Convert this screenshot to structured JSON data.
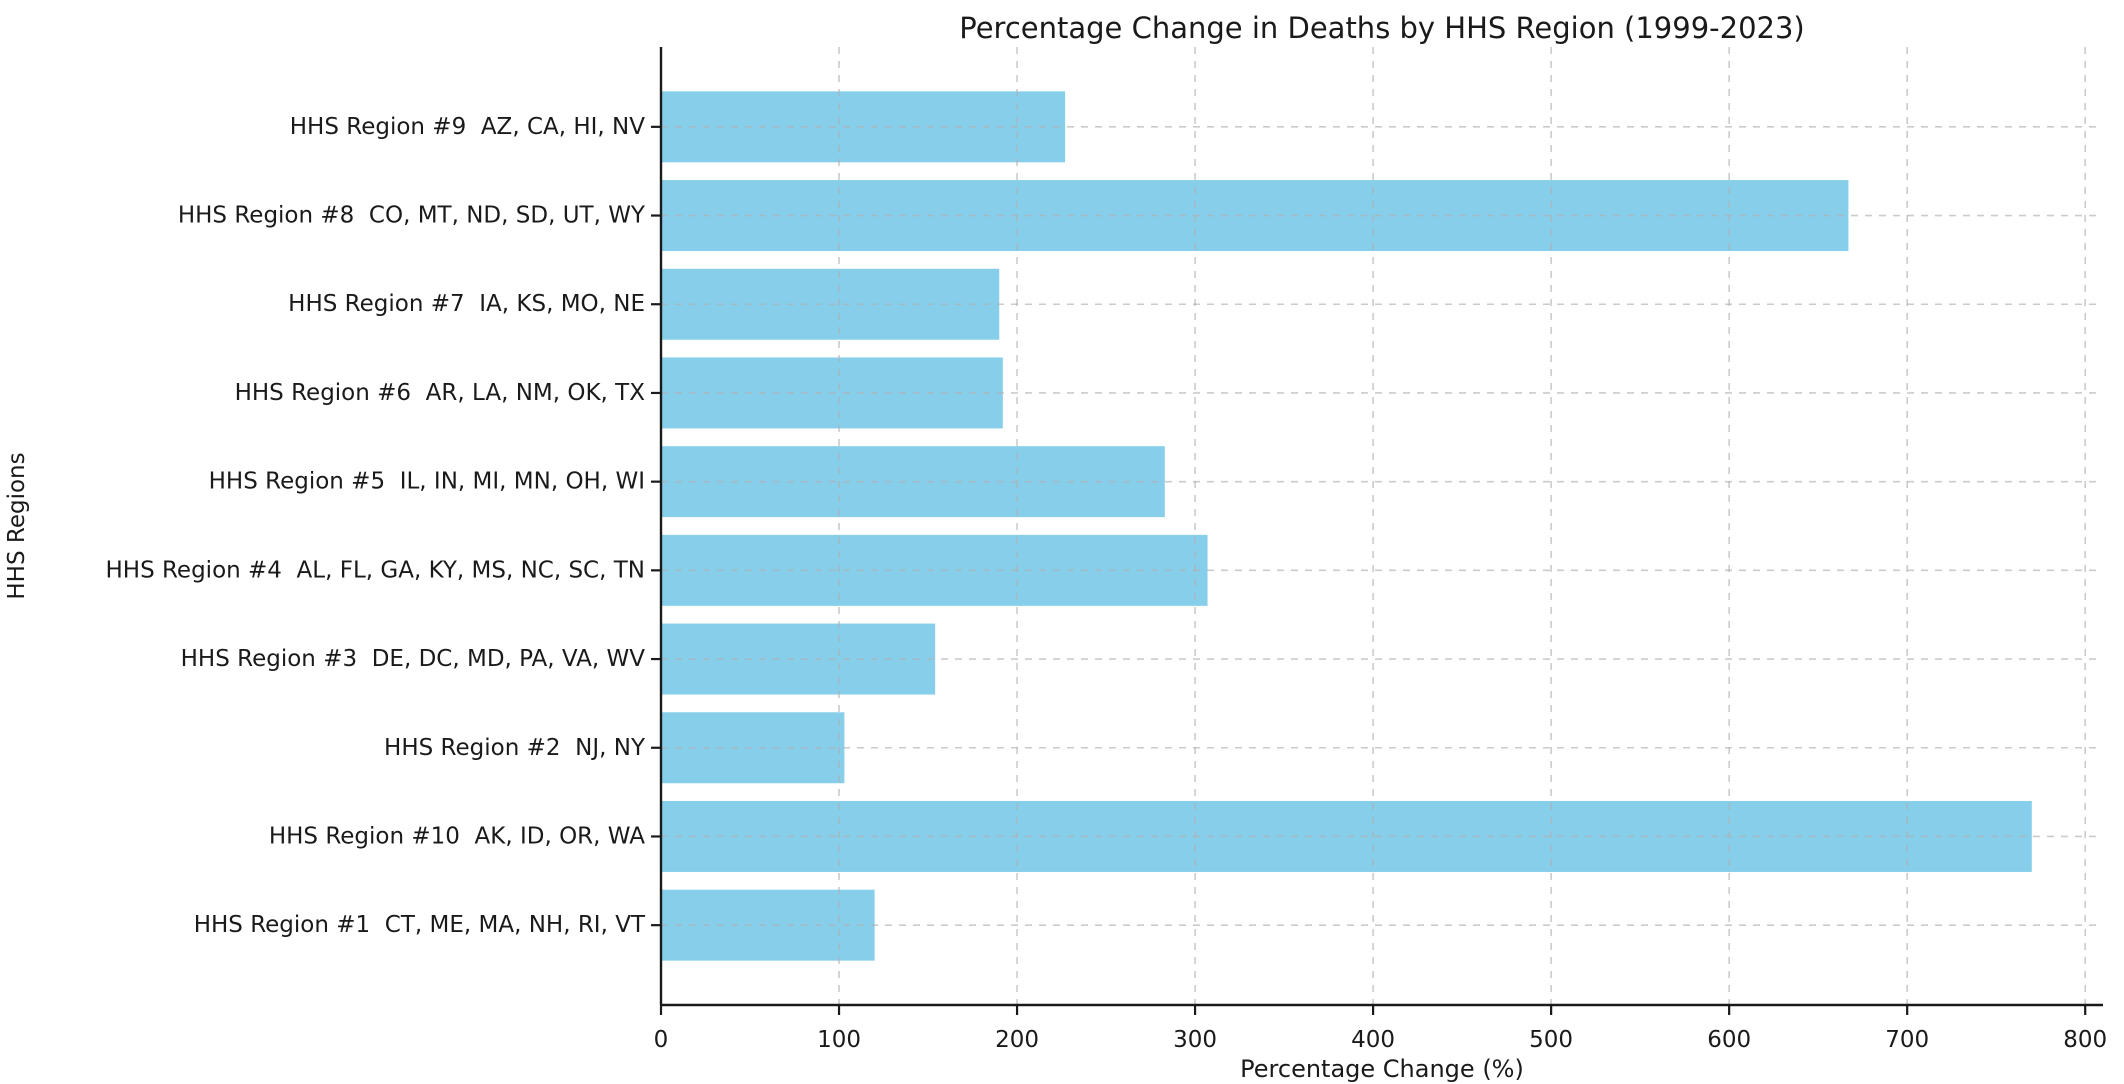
{
  "figure": {
    "background": "#ffffff"
  },
  "chart_data": {
    "type": "bar",
    "orientation": "horizontal",
    "title": "Percentage Change in Deaths by HHS Region (1999-2023)",
    "xlabel": "Percentage Change (%)",
    "ylabel": "HHS Regions",
    "categories_top_to_bottom": [
      "HHS Region #9  AZ, CA, HI, NV",
      "HHS Region #8  CO, MT, ND, SD, UT, WY",
      "HHS Region #7  IA, KS, MO, NE",
      "HHS Region #6  AR, LA, NM, OK, TX",
      "HHS Region #5  IL, IN, MI, MN, OH, WI",
      "HHS Region #4  AL, FL, GA, KY, MS, NC, SC, TN",
      "HHS Region #3  DE, DC, MD, PA, VA, WV",
      "HHS Region #2  NJ, NY",
      "HHS Region #10  AK, ID, OR, WA",
      "HHS Region #1  CT, ME, MA, NH, RI, VT"
    ],
    "values": [
      227,
      667,
      190,
      192,
      283,
      307,
      154,
      103,
      770,
      120
    ],
    "xticks": [
      0,
      100,
      200,
      300,
      400,
      500,
      600,
      700,
      800
    ],
    "xlim": [
      0,
      810
    ],
    "grid": {
      "vertical": true,
      "horizontal": true,
      "style": "dashed"
    },
    "legend": "none",
    "colors": {
      "bar": "#87ceeb",
      "axis": "#1a1a1a",
      "grid": "#b0b0b0",
      "text": "#1a1a1a"
    }
  }
}
